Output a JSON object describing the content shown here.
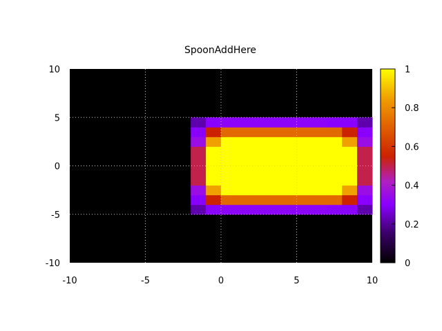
{
  "chart_data": {
    "type": "heatmap",
    "title": "SpoonAddHere",
    "xlabel": "",
    "ylabel": "",
    "xlim": [
      -10,
      10
    ],
    "ylim": [
      -10,
      10
    ],
    "x_ticks": [
      -10,
      -5,
      0,
      5,
      10
    ],
    "y_ticks": [
      -10,
      -5,
      0,
      5,
      10
    ],
    "colorbar_ticks": [
      0,
      0.2,
      0.4,
      0.6,
      0.8,
      1
    ],
    "colorbar_tick_labels": [
      "0",
      "0.2",
      "0.4",
      "0.6",
      "0.8",
      "1"
    ],
    "colorbar_range": [
      0,
      1
    ],
    "palette": "black-purple-red-orange-yellow",
    "grid": true,
    "background_color": "#000000",
    "x_edges": [
      -2,
      -1,
      0,
      1,
      2,
      3,
      4,
      5,
      6,
      7,
      8,
      9,
      10
    ],
    "y_edges": [
      -5,
      -4,
      -3,
      -2,
      -1,
      0,
      1,
      2,
      3,
      4,
      5
    ],
    "values": [
      [
        0.22,
        0.3,
        0.31,
        0.31,
        0.31,
        0.31,
        0.31,
        0.31,
        0.31,
        0.3,
        0.3,
        0.22
      ],
      [
        0.3,
        0.55,
        0.72,
        0.72,
        0.72,
        0.72,
        0.72,
        0.72,
        0.72,
        0.72,
        0.55,
        0.3
      ],
      [
        0.35,
        0.85,
        1.0,
        1.0,
        1.0,
        1.0,
        1.0,
        1.0,
        1.0,
        1.0,
        0.85,
        0.35
      ],
      [
        0.5,
        1.0,
        1.0,
        1.0,
        1.0,
        1.0,
        1.0,
        1.0,
        1.0,
        1.0,
        1.0,
        0.5
      ],
      [
        0.5,
        1.0,
        1.0,
        1.0,
        1.0,
        1.0,
        1.0,
        1.0,
        1.0,
        1.0,
        1.0,
        0.5
      ],
      [
        0.5,
        1.0,
        1.0,
        1.0,
        1.0,
        1.0,
        1.0,
        1.0,
        1.0,
        1.0,
        1.0,
        0.5
      ],
      [
        0.5,
        1.0,
        1.0,
        1.0,
        1.0,
        1.0,
        1.0,
        1.0,
        1.0,
        1.0,
        1.0,
        0.5
      ],
      [
        0.35,
        0.85,
        1.0,
        1.0,
        1.0,
        1.0,
        1.0,
        1.0,
        1.0,
        1.0,
        0.85,
        0.35
      ],
      [
        0.3,
        0.55,
        0.72,
        0.72,
        0.72,
        0.72,
        0.72,
        0.72,
        0.72,
        0.72,
        0.55,
        0.3
      ],
      [
        0.22,
        0.3,
        0.31,
        0.31,
        0.31,
        0.31,
        0.31,
        0.31,
        0.31,
        0.3,
        0.3,
        0.22
      ]
    ]
  }
}
